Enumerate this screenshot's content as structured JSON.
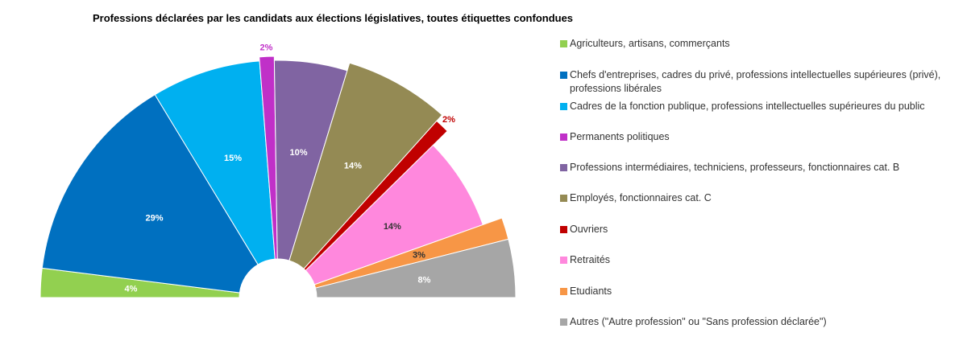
{
  "chart_data": {
    "type": "pie",
    "variant": "semicircle-donut",
    "title": "Professions déclarées par les candidats aux élections législatives, toutes étiquettes confondues",
    "series": [
      {
        "name": "Agriculteurs, artisans, commerçants",
        "value": 4,
        "label": "4%",
        "color": "#92d050",
        "label_color": "#ffffff"
      },
      {
        "name": "Chefs d'entreprises, cadres du privé, professions intellectuelles supérieures (privé), professions libérales",
        "value": 29,
        "label": "29%",
        "color": "#0070c0",
        "label_color": "#ffffff"
      },
      {
        "name": "Cadres de la fonction publique, professions intellectuelles supérieures du public",
        "value": 15,
        "label": "15%",
        "color": "#00b0f0",
        "label_color": "#ffffff"
      },
      {
        "name": "Permanents politiques",
        "value": 2,
        "label": "2%",
        "color": "#c030c8",
        "label_color": "#c030c8"
      },
      {
        "name": "Professions intermédiaires, techniciens, professeurs, fonctionnaires cat. B",
        "value": 10,
        "label": "10%",
        "color": "#8064a2",
        "label_color": "#ffffff"
      },
      {
        "name": "Employés, fonctionnaires cat. C",
        "value": 14,
        "label": "14%",
        "color": "#948a54",
        "label_color": "#ffffff"
      },
      {
        "name": "Ouvriers",
        "value": 2,
        "label": "2%",
        "color": "#c00000",
        "label_color": "#c00000"
      },
      {
        "name": "Retraités",
        "value": 14,
        "label": "14%",
        "color": "#ff88dd",
        "label_color": "#333333"
      },
      {
        "name": "Etudiants",
        "value": 3,
        "label": "3%",
        "color": "#f79646",
        "label_color": "#333333"
      },
      {
        "name": "Autres (\"Autre profession\" ou \"Sans profession déclarée\")",
        "value": 8,
        "label": "8%",
        "color": "#a6a6a6",
        "label_color": "#ffffff"
      }
    ],
    "legend_position": "right"
  }
}
